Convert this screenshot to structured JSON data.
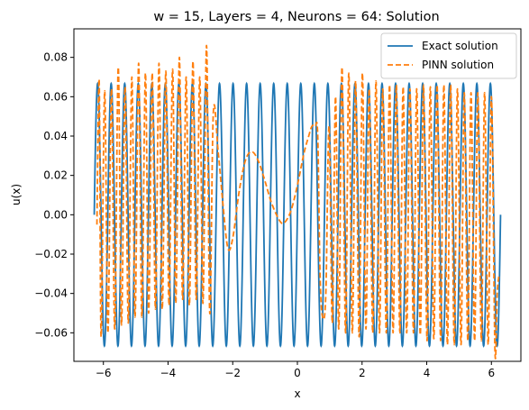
{
  "chart_data": {
    "type": "line",
    "title": "w = 15, Layers = 4, Neurons = 64: Solution",
    "xlabel": "x",
    "ylabel": "u(x)",
    "xlim": [
      -6.912,
      6.912
    ],
    "ylim": [
      -0.0745,
      0.0945
    ],
    "xticks": [
      -6,
      -4,
      -2,
      0,
      2,
      4,
      6
    ],
    "xtick_labels": [
      "−6",
      "−4",
      "−2",
      "0",
      "2",
      "4",
      "6"
    ],
    "yticks": [
      -0.06,
      -0.04,
      -0.02,
      0.0,
      0.02,
      0.04,
      0.06,
      0.08
    ],
    "ytick_labels": [
      "−0.06",
      "−0.04",
      "−0.02",
      "0.00",
      "0.02",
      "0.04",
      "0.06",
      "0.08"
    ],
    "grid": false,
    "legend_position": "top-right",
    "series": [
      {
        "name": "Exact solution",
        "color": "#1f77b4",
        "style": "solid",
        "function": "u(x) = sin(15x)/15",
        "x_range": [
          -6.2832,
          6.2832
        ],
        "y_amplitude": 0.0667
      },
      {
        "name": "PINN solution",
        "color": "#ff7f0e",
        "style": "dashed",
        "points": [
          [
            -6.2,
            -0.005
          ],
          [
            -6.13,
            0.068
          ],
          [
            -6.07,
            -0.062
          ],
          [
            -5.96,
            0.063
          ],
          [
            -5.86,
            -0.06
          ],
          [
            -5.75,
            0.064
          ],
          [
            -5.65,
            -0.058
          ],
          [
            -5.54,
            0.075
          ],
          [
            -5.44,
            -0.056
          ],
          [
            -5.33,
            0.065
          ],
          [
            -5.23,
            -0.055
          ],
          [
            -5.12,
            0.07
          ],
          [
            -5.02,
            -0.052
          ],
          [
            -4.91,
            0.077
          ],
          [
            -4.81,
            -0.052
          ],
          [
            -4.7,
            0.072
          ],
          [
            -4.6,
            -0.05
          ],
          [
            -4.49,
            0.072
          ],
          [
            -4.39,
            -0.048
          ],
          [
            -4.28,
            0.077
          ],
          [
            -4.18,
            -0.048
          ],
          [
            -4.07,
            0.073
          ],
          [
            -3.97,
            -0.046
          ],
          [
            -3.86,
            0.074
          ],
          [
            -3.76,
            -0.045
          ],
          [
            -3.65,
            0.08
          ],
          [
            -3.55,
            -0.043
          ],
          [
            -3.44,
            0.07
          ],
          [
            -3.34,
            -0.046
          ],
          [
            -3.23,
            0.078
          ],
          [
            -3.13,
            -0.043
          ],
          [
            -3.02,
            0.07
          ],
          [
            -2.92,
            -0.045
          ],
          [
            -2.81,
            0.086
          ],
          [
            -2.71,
            -0.05
          ],
          [
            -2.6,
            0.052
          ],
          [
            -2.45,
            0.032
          ],
          [
            -2.3,
            0.005
          ],
          [
            -2.15,
            -0.017
          ],
          [
            -2.0,
            -0.012
          ],
          [
            -1.8,
            0.012
          ],
          [
            -1.6,
            0.028
          ],
          [
            -1.4,
            0.032
          ],
          [
            -1.2,
            0.027
          ],
          [
            -1.0,
            0.017
          ],
          [
            -0.8,
            0.006
          ],
          [
            -0.55,
            -0.003
          ],
          [
            -0.4,
            -0.004
          ],
          [
            -0.2,
            0.002
          ],
          [
            0.0,
            0.015
          ],
          [
            0.2,
            0.031
          ],
          [
            0.35,
            0.04
          ],
          [
            0.45,
            0.045
          ],
          [
            0.55,
            0.045
          ],
          [
            0.63,
            0.04
          ],
          [
            0.7,
            -0.03
          ],
          [
            0.78,
            -0.052
          ],
          [
            0.88,
            -0.04
          ],
          [
            0.98,
            0.045
          ],
          [
            1.08,
            -0.055
          ],
          [
            1.18,
            0.06
          ],
          [
            1.28,
            -0.058
          ],
          [
            1.38,
            0.075
          ],
          [
            1.49,
            -0.06
          ],
          [
            1.59,
            0.072
          ],
          [
            1.7,
            -0.06
          ],
          [
            1.8,
            0.068
          ],
          [
            1.91,
            -0.062
          ],
          [
            2.01,
            0.072
          ],
          [
            2.12,
            -0.058
          ],
          [
            2.22,
            0.064
          ],
          [
            2.33,
            -0.06
          ],
          [
            2.43,
            0.068
          ],
          [
            2.54,
            -0.06
          ],
          [
            2.64,
            0.064
          ],
          [
            2.75,
            -0.06
          ],
          [
            2.85,
            0.066
          ],
          [
            2.96,
            -0.06
          ],
          [
            3.06,
            0.066
          ],
          [
            3.17,
            -0.06
          ],
          [
            3.27,
            0.065
          ],
          [
            3.38,
            -0.06
          ],
          [
            3.48,
            0.064
          ],
          [
            3.59,
            -0.06
          ],
          [
            3.69,
            0.064
          ],
          [
            3.8,
            -0.061
          ],
          [
            3.9,
            0.066
          ],
          [
            4.01,
            -0.064
          ],
          [
            4.11,
            0.065
          ],
          [
            4.22,
            -0.063
          ],
          [
            4.32,
            0.066
          ],
          [
            4.43,
            -0.064
          ],
          [
            4.53,
            0.066
          ],
          [
            4.64,
            -0.066
          ],
          [
            4.74,
            0.066
          ],
          [
            4.85,
            -0.066
          ],
          [
            4.95,
            0.064
          ],
          [
            5.06,
            -0.066
          ],
          [
            5.16,
            0.062
          ],
          [
            5.27,
            -0.064
          ],
          [
            5.37,
            0.062
          ],
          [
            5.48,
            -0.064
          ],
          [
            5.58,
            0.062
          ],
          [
            5.69,
            -0.064
          ],
          [
            5.79,
            0.062
          ],
          [
            5.9,
            -0.066
          ],
          [
            6.0,
            0.06
          ],
          [
            6.11,
            -0.069
          ],
          [
            6.18,
            -0.04
          ],
          [
            6.24,
            -0.03
          ]
        ]
      }
    ]
  }
}
